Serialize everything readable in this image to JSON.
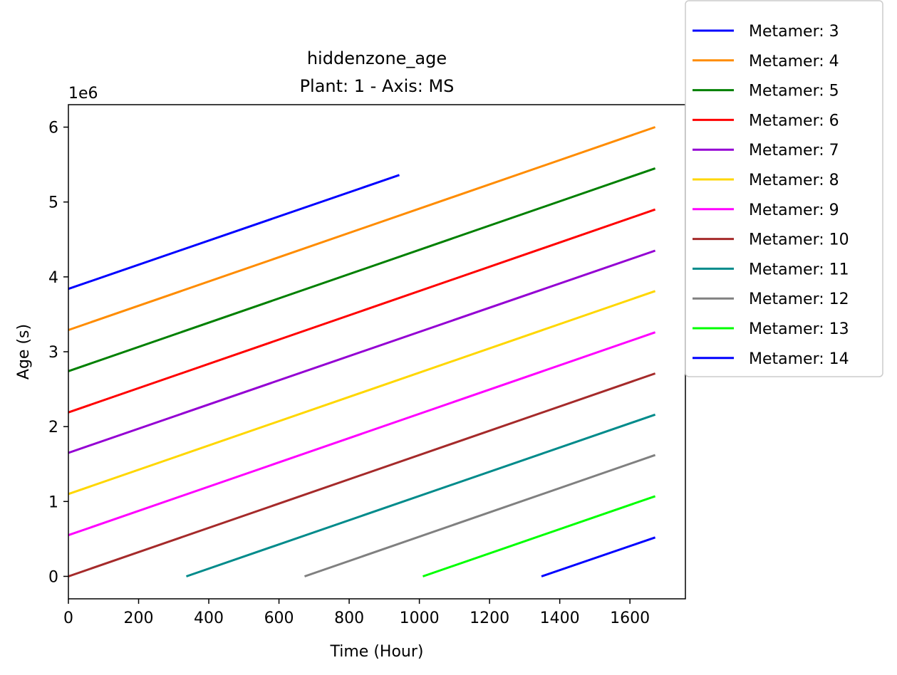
{
  "chart_data": {
    "type": "line",
    "title": "hiddenzone_age",
    "subtitle": "Plant: 1 - Axis: MS",
    "xlabel": "Time (Hour)",
    "ylabel": "Age (s)",
    "y_scale_label": "1e6",
    "xlim": [
      0,
      1758
    ],
    "ylim": [
      -0.3,
      6.3
    ],
    "x_ticks": [
      0,
      200,
      400,
      600,
      800,
      1000,
      1200,
      1400,
      1600
    ],
    "y_ticks": [
      0,
      1,
      2,
      3,
      4,
      5,
      6
    ],
    "legend_position": "outside-top-right",
    "grid": false,
    "series": [
      {
        "name": "Metamer: 3",
        "color": "#0000ff",
        "x": [
          0,
          943
        ],
        "y": [
          3.84,
          5.36
        ]
      },
      {
        "name": "Metamer: 4",
        "color": "#ff8c00",
        "x": [
          0,
          1672
        ],
        "y": [
          3.29,
          6.0
        ]
      },
      {
        "name": "Metamer: 5",
        "color": "#008000",
        "x": [
          0,
          1672
        ],
        "y": [
          2.74,
          5.45
        ]
      },
      {
        "name": "Metamer: 6",
        "color": "#ff0000",
        "x": [
          0,
          1672
        ],
        "y": [
          2.19,
          4.9
        ]
      },
      {
        "name": "Metamer: 7",
        "color": "#9400d3",
        "x": [
          0,
          1672
        ],
        "y": [
          1.65,
          4.35
        ]
      },
      {
        "name": "Metamer: 8",
        "color": "#ffd700",
        "x": [
          0,
          1672
        ],
        "y": [
          1.1,
          3.81
        ]
      },
      {
        "name": "Metamer: 9",
        "color": "#ff00ff",
        "x": [
          0,
          1672
        ],
        "y": [
          0.55,
          3.26
        ]
      },
      {
        "name": "Metamer: 10",
        "color": "#a52a2a",
        "x": [
          0,
          1672
        ],
        "y": [
          0.0,
          2.71
        ]
      },
      {
        "name": "Metamer: 11",
        "color": "#008b8b",
        "x": [
          336,
          1672
        ],
        "y": [
          0.0,
          2.16
        ]
      },
      {
        "name": "Metamer: 12",
        "color": "#808080",
        "x": [
          673,
          1672
        ],
        "y": [
          0.0,
          1.62
        ]
      },
      {
        "name": "Metamer: 13",
        "color": "#00ff00",
        "x": [
          1010,
          1672
        ],
        "y": [
          0.0,
          1.07
        ]
      },
      {
        "name": "Metamer: 14",
        "color": "#0000ff",
        "x": [
          1348,
          1672
        ],
        "y": [
          0.0,
          0.52
        ]
      }
    ]
  }
}
